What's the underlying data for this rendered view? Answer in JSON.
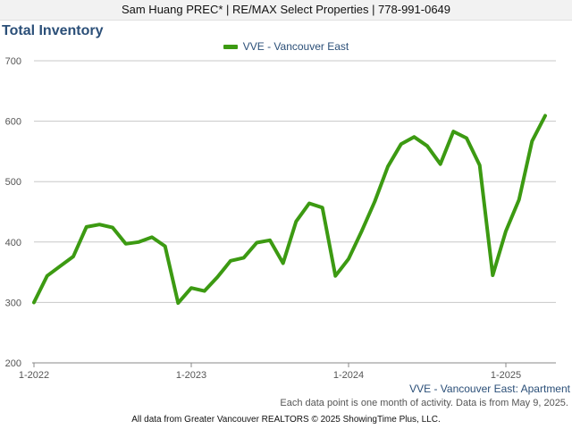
{
  "header": {
    "agent_line": "Sam Huang PREC* | RE/MAX Select Properties | 778-991-0649"
  },
  "chart_data": {
    "type": "line",
    "title": "Total Inventory",
    "subtitle": "VVE - Vancouver East: Apartment",
    "footnote": "Each data point is one month of activity. Data is from May 9, 2025.",
    "credit": "All data from Greater Vancouver REALTORS © 2025 ShowingTime Plus, LLC.",
    "legend_position": "top-center",
    "grid": true,
    "ylim": [
      200,
      700
    ],
    "yticks": [
      "200",
      "300",
      "400",
      "500",
      "600",
      "700"
    ],
    "xticks": [
      "1-2022",
      "1-2023",
      "1-2024",
      "1-2025"
    ],
    "x": [
      "2022-01",
      "2022-02",
      "2022-03",
      "2022-04",
      "2022-05",
      "2022-06",
      "2022-07",
      "2022-08",
      "2022-09",
      "2022-10",
      "2022-11",
      "2022-12",
      "2023-01",
      "2023-02",
      "2023-03",
      "2023-04",
      "2023-05",
      "2023-06",
      "2023-07",
      "2023-08",
      "2023-09",
      "2023-10",
      "2023-11",
      "2023-12",
      "2024-01",
      "2024-02",
      "2024-03",
      "2024-04",
      "2024-05",
      "2024-06",
      "2024-07",
      "2024-08",
      "2024-09",
      "2024-10",
      "2024-11",
      "2024-12",
      "2025-01",
      "2025-02",
      "2025-03",
      "2025-04"
    ],
    "series": [
      {
        "name": "VVE - Vancouver East",
        "color": "#3c9a12",
        "values": [
          300,
          344,
          360,
          376,
          425,
          429,
          424,
          397,
          400,
          408,
          393,
          299,
          324,
          319,
          342,
          369,
          374,
          399,
          403,
          365,
          434,
          464,
          457,
          344,
          372,
          418,
          467,
          525,
          562,
          574,
          559,
          529,
          583,
          572,
          527,
          345,
          418,
          470,
          567,
          609
        ]
      }
    ]
  }
}
